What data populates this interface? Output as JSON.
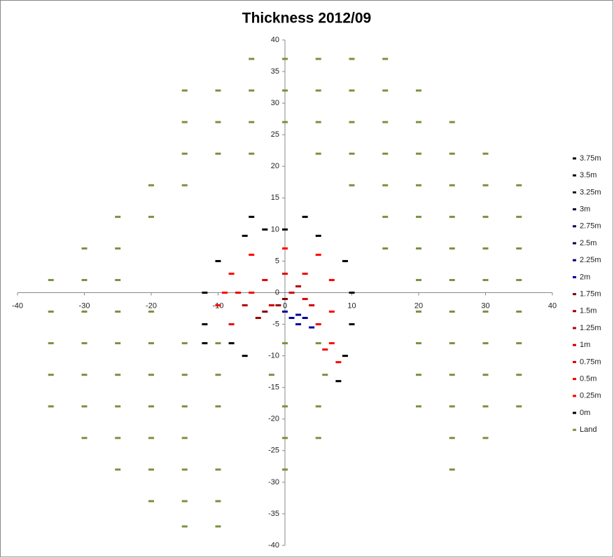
{
  "chart_data": {
    "type": "scatter",
    "title": "Thickness 2012/09",
    "xlim": [
      -40,
      40
    ],
    "ylim": [
      -40,
      40
    ],
    "xticks": [
      -40,
      -30,
      -20,
      -10,
      0,
      10,
      20,
      30,
      40
    ],
    "yticks": [
      -40,
      -35,
      -30,
      -25,
      -20,
      -15,
      -10,
      -5,
      0,
      5,
      10,
      15,
      20,
      25,
      30,
      35,
      40
    ],
    "legend": "right",
    "series": [
      {
        "name": "3.75m",
        "color": "#000000",
        "x": [],
        "values": []
      },
      {
        "name": "3.5m",
        "color": "#0d0d0d",
        "x": [],
        "values": []
      },
      {
        "name": "3.25m",
        "color": "#1a1a1a",
        "x": [],
        "values": []
      },
      {
        "name": "3m",
        "color": "#000033",
        "x": [],
        "values": []
      },
      {
        "name": "2.75m",
        "color": "#000066",
        "x": [],
        "values": []
      },
      {
        "name": "2.5m",
        "color": "#00004d",
        "x": [],
        "values": []
      },
      {
        "name": "2.25m",
        "color": "#000080",
        "x": [],
        "values": []
      },
      {
        "name": "2m",
        "color": "#000099",
        "x": [
          1,
          2,
          3,
          0,
          2,
          4
        ],
        "values": [
          -4,
          -5,
          -4,
          -3,
          -3.5,
          -5.5
        ]
      },
      {
        "name": "1.75m",
        "color": "#800000",
        "x": [
          -3,
          0
        ],
        "values": [
          -3,
          -1
        ]
      },
      {
        "name": "1.5m",
        "color": "#990000",
        "x": [
          -4,
          -1
        ],
        "values": [
          -4,
          -2
        ]
      },
      {
        "name": "1.25m",
        "color": "#b30000",
        "x": [
          -6,
          2
        ],
        "values": [
          -2,
          1
        ]
      },
      {
        "name": "1m",
        "color": "#cc0000",
        "x": [
          -2,
          1,
          4
        ],
        "values": [
          -2,
          0,
          -2
        ]
      },
      {
        "name": "0.75m",
        "color": "#e60000",
        "x": [
          -3,
          0,
          3,
          -7
        ],
        "values": [
          2,
          3,
          -1,
          0
        ]
      },
      {
        "name": "0.5m",
        "color": "#f20000",
        "x": [
          -5,
          3,
          -8,
          5,
          6
        ],
        "values": [
          0,
          3,
          -5,
          -5,
          -9
        ]
      },
      {
        "name": "0.25m",
        "color": "#ff0000",
        "x": [
          -8,
          -5,
          0,
          5,
          7,
          7,
          7,
          -10,
          -9,
          8
        ],
        "values": [
          3,
          6,
          7,
          6,
          2,
          -3,
          -8,
          -2,
          0,
          -11
        ]
      },
      {
        "name": "0m",
        "color": "#000000",
        "x": [
          -12,
          -12,
          -10,
          -6,
          0,
          5,
          9,
          10,
          10,
          9,
          8,
          -8,
          -5,
          -6,
          -12,
          -3,
          3
        ],
        "values": [
          0,
          -5,
          5,
          9,
          10,
          9,
          5,
          0,
          -5,
          -10,
          -14,
          -8,
          12,
          -10,
          -8,
          10,
          12
        ]
      },
      {
        "name": "Land",
        "color": "#77933c",
        "x": [
          -5,
          0,
          5,
          10,
          15,
          -15,
          -10,
          -5,
          0,
          5,
          10,
          15,
          20,
          -15,
          -10,
          -5,
          0,
          5,
          10,
          15,
          20,
          25,
          -15,
          -10,
          -5,
          5,
          10,
          15,
          20,
          25,
          30,
          -20,
          -15,
          10,
          15,
          20,
          25,
          30,
          35,
          -25,
          -20,
          15,
          20,
          25,
          30,
          35,
          -30,
          -25,
          15,
          20,
          25,
          30,
          35,
          -35,
          -30,
          -25,
          20,
          25,
          30,
          35,
          -35,
          -30,
          -25,
          -20,
          20,
          25,
          30,
          35,
          -35,
          -30,
          -25,
          -20,
          -15,
          -10,
          0,
          5,
          20,
          25,
          30,
          35,
          -35,
          -30,
          -25,
          -20,
          -15,
          -10,
          -2,
          6,
          20,
          25,
          30,
          35,
          -35,
          -30,
          -25,
          -20,
          -15,
          -10,
          0,
          5,
          20,
          25,
          30,
          35,
          -30,
          -25,
          -20,
          -15,
          0,
          5,
          25,
          30,
          -25,
          -20,
          -15,
          -10,
          0,
          25,
          -20,
          -15,
          -10,
          -15,
          -10
        ],
        "values": [
          37,
          37,
          37,
          37,
          37,
          32,
          32,
          32,
          32,
          32,
          32,
          32,
          32,
          27,
          27,
          27,
          27,
          27,
          27,
          27,
          27,
          27,
          22,
          22,
          22,
          22,
          22,
          22,
          22,
          22,
          22,
          17,
          17,
          17,
          17,
          17,
          17,
          17,
          17,
          12,
          12,
          12,
          12,
          12,
          12,
          12,
          7,
          7,
          7,
          7,
          7,
          7,
          7,
          2,
          2,
          2,
          2,
          2,
          2,
          2,
          -3,
          -3,
          -3,
          -3,
          -3,
          -3,
          -3,
          -3,
          -8,
          -8,
          -8,
          -8,
          -8,
          -8,
          -8,
          -8,
          -8,
          -8,
          -8,
          -8,
          -13,
          -13,
          -13,
          -13,
          -13,
          -13,
          -13,
          -13,
          -13,
          -13,
          -13,
          -13,
          -18,
          -18,
          -18,
          -18,
          -18,
          -18,
          -18,
          -18,
          -18,
          -18,
          -18,
          -18,
          -23,
          -23,
          -23,
          -23,
          -23,
          -23,
          -23,
          -23,
          -28,
          -28,
          -28,
          -28,
          -28,
          -28,
          -33,
          -33,
          -33,
          -37,
          -37
        ]
      }
    ]
  }
}
